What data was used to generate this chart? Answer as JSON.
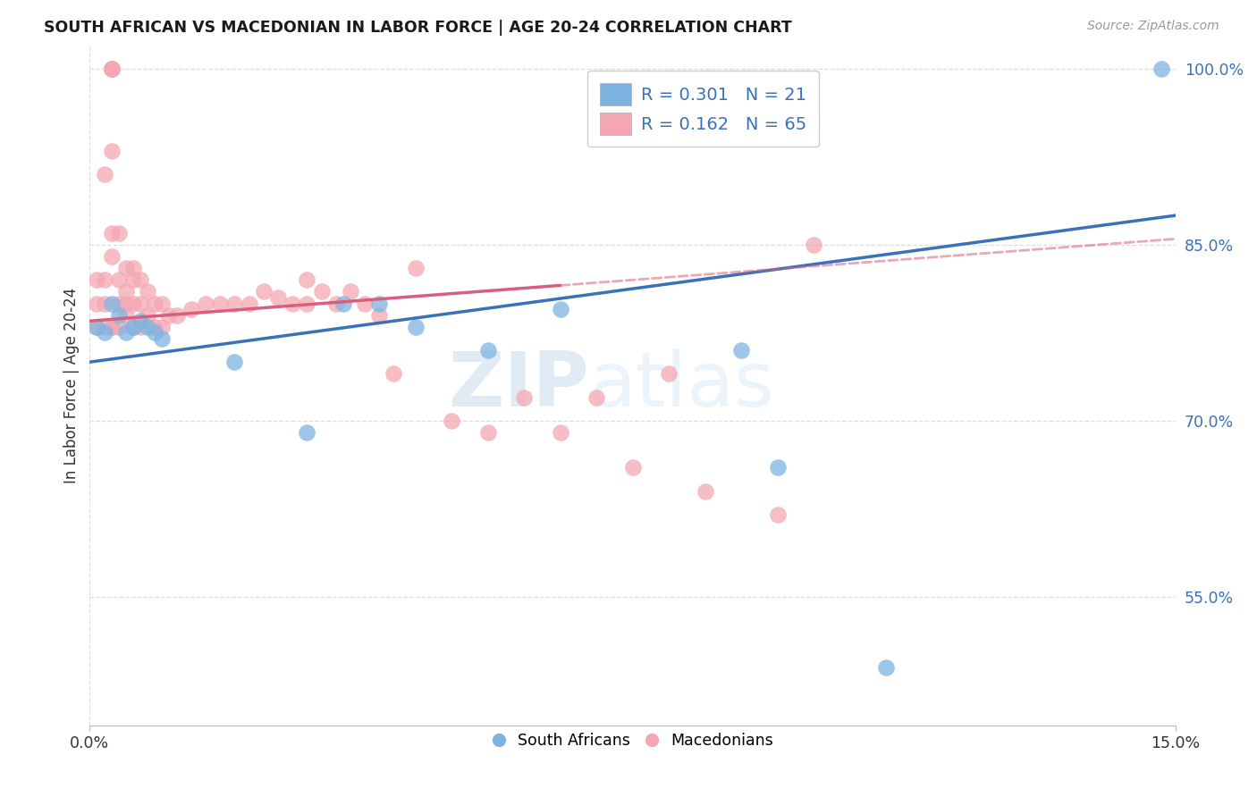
{
  "title": "SOUTH AFRICAN VS MACEDONIAN IN LABOR FORCE | AGE 20-24 CORRELATION CHART",
  "source": "Source: ZipAtlas.com",
  "ylabel": "In Labor Force | Age 20-24",
  "xmin": 0.0,
  "xmax": 0.15,
  "ymin": 0.44,
  "ymax": 1.02,
  "ytick_vals": [
    0.55,
    0.7,
    0.85,
    1.0
  ],
  "ytick_labels": [
    "55.0%",
    "70.0%",
    "85.0%",
    "100.0%"
  ],
  "xtick_vals": [
    0.0,
    0.15
  ],
  "xtick_labels": [
    "0.0%",
    "15.0%"
  ],
  "watermark_top": "ZIP",
  "watermark_bot": "atlas",
  "legend_items": [
    {
      "R": "0.301",
      "N": "21",
      "color": "#7EB4E2"
    },
    {
      "R": "0.162",
      "N": "65",
      "color": "#F4A7B2"
    }
  ],
  "blue_scatter_color": "#7EB4E2",
  "pink_scatter_color": "#F4A7B2",
  "blue_line_color": "#3A72B8",
  "pink_line_color": "#D95F7F",
  "sa_x": [
    0.001,
    0.002,
    0.003,
    0.004,
    0.005,
    0.006,
    0.007,
    0.008,
    0.009,
    0.01,
    0.02,
    0.03,
    0.035,
    0.04,
    0.045,
    0.055,
    0.065,
    0.09,
    0.095,
    0.11,
    0.148
  ],
  "sa_y": [
    0.78,
    0.775,
    0.8,
    0.79,
    0.775,
    0.78,
    0.785,
    0.78,
    0.775,
    0.77,
    0.75,
    0.69,
    0.8,
    0.8,
    0.78,
    0.76,
    0.795,
    0.76,
    0.66,
    0.49,
    1.0
  ],
  "mac_x": [
    0.001,
    0.001,
    0.001,
    0.002,
    0.002,
    0.002,
    0.003,
    0.003,
    0.003,
    0.003,
    0.003,
    0.004,
    0.004,
    0.004,
    0.005,
    0.005,
    0.005,
    0.006,
    0.006,
    0.006,
    0.007,
    0.007,
    0.007,
    0.008,
    0.008,
    0.009,
    0.009,
    0.01,
    0.01,
    0.011,
    0.012,
    0.014,
    0.016,
    0.018,
    0.02,
    0.022,
    0.024,
    0.026,
    0.028,
    0.03,
    0.03,
    0.032,
    0.034,
    0.036,
    0.038,
    0.04,
    0.042,
    0.045,
    0.05,
    0.055,
    0.06,
    0.065,
    0.07,
    0.075,
    0.08,
    0.085,
    0.095,
    0.1,
    0.002,
    0.003,
    0.003,
    0.003,
    0.004,
    0.005,
    0.006
  ],
  "mac_y": [
    0.82,
    0.8,
    0.78,
    0.82,
    0.8,
    0.78,
    1.0,
    1.0,
    1.0,
    0.93,
    0.78,
    0.82,
    0.8,
    0.78,
    0.83,
    0.81,
    0.79,
    0.83,
    0.8,
    0.78,
    0.82,
    0.8,
    0.78,
    0.81,
    0.79,
    0.8,
    0.78,
    0.8,
    0.78,
    0.79,
    0.79,
    0.795,
    0.8,
    0.8,
    0.8,
    0.8,
    0.81,
    0.805,
    0.8,
    0.8,
    0.82,
    0.81,
    0.8,
    0.81,
    0.8,
    0.79,
    0.74,
    0.83,
    0.7,
    0.69,
    0.72,
    0.69,
    0.72,
    0.66,
    0.74,
    0.64,
    0.62,
    0.85,
    0.91,
    0.86,
    0.84,
    0.78,
    0.86,
    0.8,
    0.82
  ],
  "pink_solid_xend": 0.065,
  "grid_color": "#DDDDDD",
  "bg_color": "#FFFFFF"
}
